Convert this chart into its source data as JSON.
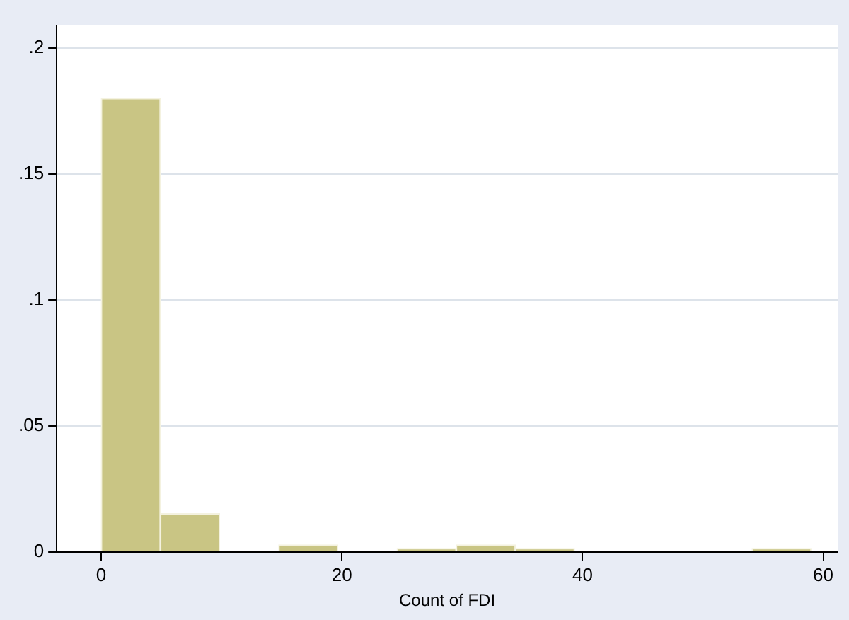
{
  "chart_data": {
    "type": "histogram",
    "xlabel": "Count of FDI",
    "bins": [
      0,
      4.9167,
      9.8333,
      14.75,
      19.6667,
      24.5833,
      29.5,
      34.4167,
      39.3333,
      44.25,
      49.1667,
      54.0833,
      59
    ],
    "values": [
      0.18,
      0.0153,
      0,
      0.0028,
      0,
      0.0014,
      0.0028,
      0.0014,
      0,
      0,
      0,
      0.0014
    ],
    "color": "#c9c584",
    "xlim": [
      -3.7,
      61.2
    ],
    "xticks": [
      0,
      20,
      40,
      60
    ],
    "ylim": [
      0,
      0.209
    ],
    "yticks": [
      0,
      {
        "value": 0.05,
        "label": ".05"
      },
      {
        "value": 0.1,
        "label": ".1"
      },
      {
        "value": 0.15,
        "label": ".15"
      },
      {
        "value": 0.2,
        "label": ".2"
      }
    ],
    "grid": "y",
    "legend": false
  }
}
